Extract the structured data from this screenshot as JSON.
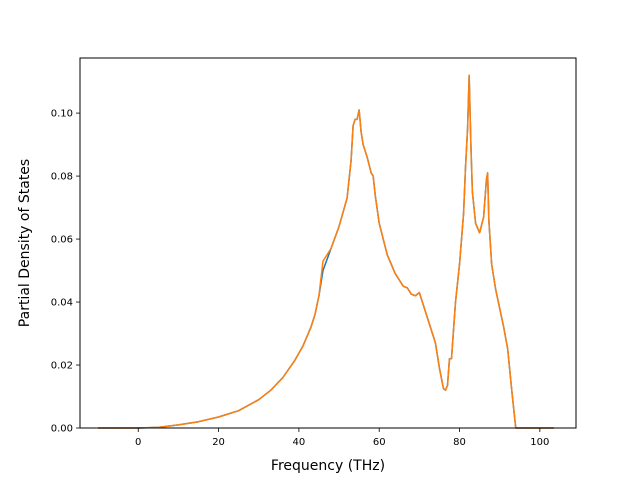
{
  "chart_data": {
    "type": "line",
    "title": "",
    "xlabel": "Frequency (THz)",
    "ylabel": "Partial Density of States",
    "xlim": [
      -14.5,
      109
    ],
    "ylim": [
      0.0,
      0.1175
    ],
    "xticks": [
      0,
      20,
      40,
      60,
      80,
      100
    ],
    "yticks": [
      0.0,
      0.02,
      0.04,
      0.06,
      0.08,
      0.1
    ],
    "xtick_labels": [
      "0",
      "20",
      "40",
      "60",
      "80",
      "100"
    ],
    "ytick_labels": [
      "0.00",
      "0.02",
      "0.04",
      "0.06",
      "0.08",
      "0.10"
    ],
    "grid": false,
    "legend": "none",
    "series": [
      {
        "color": "#1f77b4",
        "x": [
          -10,
          0,
          5,
          10,
          15,
          20,
          25,
          30,
          33,
          36,
          39,
          41,
          43,
          44,
          45,
          46,
          48,
          50,
          52,
          53,
          53.5,
          54,
          54.5,
          55,
          55.5,
          56,
          57,
          58,
          58.5,
          59,
          60,
          62,
          64,
          65,
          66,
          67,
          68,
          69,
          70,
          72,
          74,
          75,
          76,
          76.5,
          77,
          77.5,
          78,
          79,
          80,
          81,
          81.5,
          82,
          82.4,
          82.8,
          83.2,
          84,
          85,
          86,
          86.7,
          87,
          87.3,
          88,
          89,
          90,
          91,
          92,
          93,
          94,
          95,
          103.5
        ],
        "y": [
          0.0,
          0.0,
          0.0002,
          0.001,
          0.002,
          0.0035,
          0.0055,
          0.009,
          0.012,
          0.016,
          0.0215,
          0.026,
          0.032,
          0.036,
          0.042,
          0.05,
          0.057,
          0.064,
          0.073,
          0.085,
          0.096,
          0.098,
          0.098,
          0.101,
          0.094,
          0.09,
          0.086,
          0.081,
          0.08,
          0.074,
          0.065,
          0.055,
          0.049,
          0.047,
          0.045,
          0.0445,
          0.0425,
          0.042,
          0.043,
          0.035,
          0.027,
          0.019,
          0.0125,
          0.012,
          0.0135,
          0.022,
          0.022,
          0.04,
          0.052,
          0.068,
          0.083,
          0.095,
          0.112,
          0.091,
          0.075,
          0.065,
          0.062,
          0.067,
          0.079,
          0.081,
          0.066,
          0.052,
          0.044,
          0.038,
          0.032,
          0.025,
          0.012,
          0.0,
          0.0,
          0.0
        ]
      },
      {
        "color": "#ff7f0e",
        "x": [
          -10,
          0,
          5,
          10,
          15,
          20,
          25,
          30,
          33,
          36,
          39,
          41,
          43,
          44,
          45,
          46,
          48,
          50,
          52,
          53,
          53.5,
          54,
          54.5,
          55,
          55.5,
          56,
          57,
          58,
          58.5,
          59,
          60,
          62,
          64,
          65,
          66,
          67,
          68,
          69,
          70,
          72,
          74,
          75,
          76,
          76.5,
          77,
          77.5,
          78,
          79,
          80,
          81,
          81.5,
          82,
          82.4,
          82.8,
          83.2,
          84,
          85,
          86,
          86.7,
          87,
          87.3,
          88,
          89,
          90,
          91,
          92,
          93,
          94,
          95,
          103.5
        ],
        "y": [
          0.0,
          0.0,
          0.0002,
          0.001,
          0.002,
          0.0035,
          0.0055,
          0.009,
          0.012,
          0.016,
          0.0215,
          0.026,
          0.032,
          0.036,
          0.042,
          0.053,
          0.057,
          0.064,
          0.073,
          0.085,
          0.096,
          0.098,
          0.098,
          0.101,
          0.094,
          0.09,
          0.086,
          0.081,
          0.08,
          0.074,
          0.065,
          0.055,
          0.049,
          0.047,
          0.045,
          0.0445,
          0.0425,
          0.042,
          0.043,
          0.035,
          0.027,
          0.019,
          0.0125,
          0.012,
          0.0135,
          0.022,
          0.022,
          0.04,
          0.052,
          0.068,
          0.083,
          0.095,
          0.112,
          0.091,
          0.075,
          0.065,
          0.062,
          0.067,
          0.079,
          0.081,
          0.066,
          0.052,
          0.044,
          0.038,
          0.032,
          0.025,
          0.012,
          0.0,
          0.0,
          0.0
        ]
      }
    ]
  }
}
